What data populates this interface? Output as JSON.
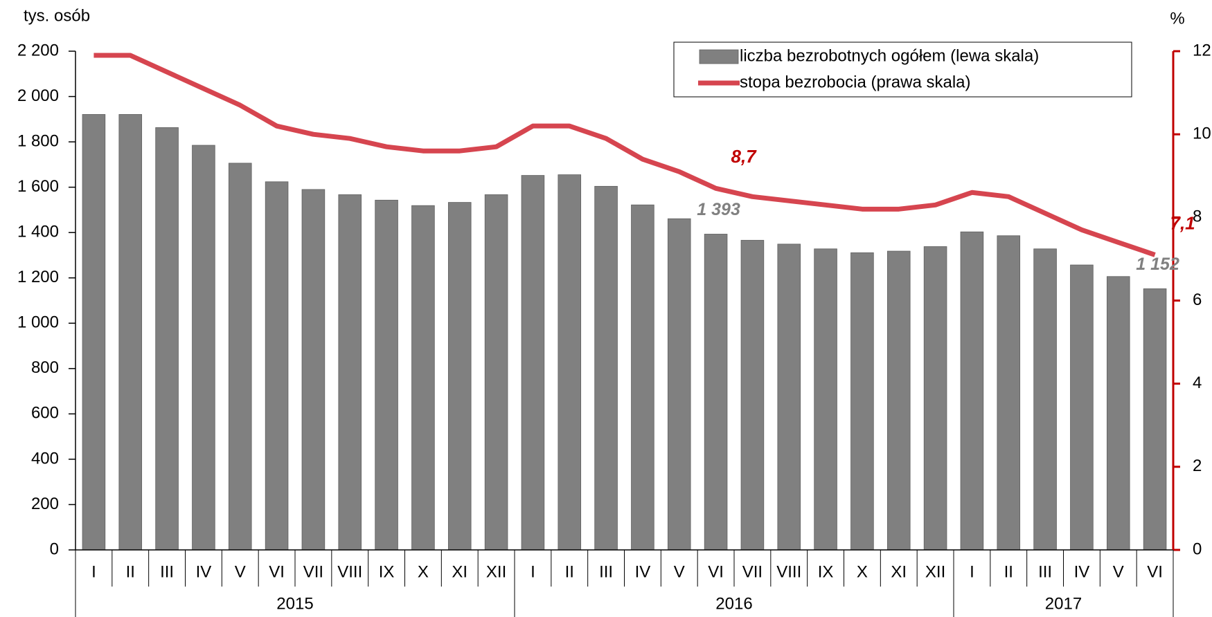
{
  "chart_data": {
    "type": "bar-line",
    "y_axis_label": "tys. osób",
    "y2_axis_label": "%",
    "category_groups": [
      {
        "name": "2015",
        "categories": [
          "I",
          "II",
          "III",
          "IV",
          "V",
          "VI",
          "VII",
          "VIII",
          "IX",
          "X",
          "XI",
          "XII"
        ]
      },
      {
        "name": "2016",
        "categories": [
          "I",
          "II",
          "III",
          "IV",
          "V",
          "VI",
          "VII",
          "VIII",
          "IX",
          "X",
          "XI",
          "XII"
        ]
      },
      {
        "name": "2017",
        "categories": [
          "I",
          "II",
          "III",
          "IV",
          "V",
          "VI"
        ]
      }
    ],
    "series": [
      {
        "name": "liczba bezrobotnych ogółem (lewa skala)",
        "type": "bar",
        "color": "#808080",
        "values": [
          1921,
          1921,
          1863,
          1785,
          1706,
          1624,
          1590,
          1567,
          1543,
          1519,
          1533,
          1567,
          1652,
          1655,
          1604,
          1522,
          1461,
          1393,
          1366,
          1349,
          1328,
          1311,
          1318,
          1338,
          1403,
          1386,
          1328,
          1257,
          1206,
          1152
        ],
        "value_labels": [
          null,
          null,
          null,
          null,
          null,
          null,
          null,
          null,
          null,
          null,
          null,
          null,
          null,
          null,
          null,
          null,
          null,
          "1 393",
          null,
          null,
          null,
          null,
          null,
          null,
          null,
          null,
          null,
          null,
          null,
          "1 152"
        ]
      },
      {
        "name": "stopa bezrobocia (prawa skala)",
        "type": "line",
        "axis": "y2",
        "color": "#d6454f",
        "values": [
          11.9,
          11.9,
          11.5,
          11.1,
          10.7,
          10.2,
          10.0,
          9.9,
          9.7,
          9.6,
          9.6,
          9.7,
          10.2,
          10.2,
          9.9,
          9.4,
          9.1,
          8.7,
          8.5,
          8.4,
          8.3,
          8.2,
          8.2,
          8.3,
          8.6,
          8.5,
          8.1,
          7.7,
          7.4,
          7.1
        ],
        "value_labels": [
          null,
          null,
          null,
          null,
          null,
          null,
          null,
          null,
          null,
          null,
          null,
          null,
          null,
          null,
          null,
          null,
          null,
          "8,7",
          null,
          null,
          null,
          null,
          null,
          null,
          null,
          null,
          null,
          null,
          null,
          "7,1"
        ]
      }
    ],
    "ylim": [
      0,
      2200
    ],
    "yticks": [
      0,
      200,
      400,
      600,
      800,
      {
        "value": 1000,
        "label": "1 000"
      },
      {
        "value": 1200,
        "label": "1 200"
      },
      {
        "value": 1400,
        "label": "1 400"
      },
      {
        "value": 1600,
        "label": "1 600"
      },
      {
        "value": 1800,
        "label": "1 800"
      },
      {
        "value": 2000,
        "label": "2 000"
      },
      {
        "value": 2200,
        "label": "2 200"
      }
    ],
    "y2lim": [
      0,
      12
    ],
    "y2ticks": [
      0,
      2,
      4,
      6,
      8,
      10,
      12
    ],
    "legend": "top-right"
  }
}
